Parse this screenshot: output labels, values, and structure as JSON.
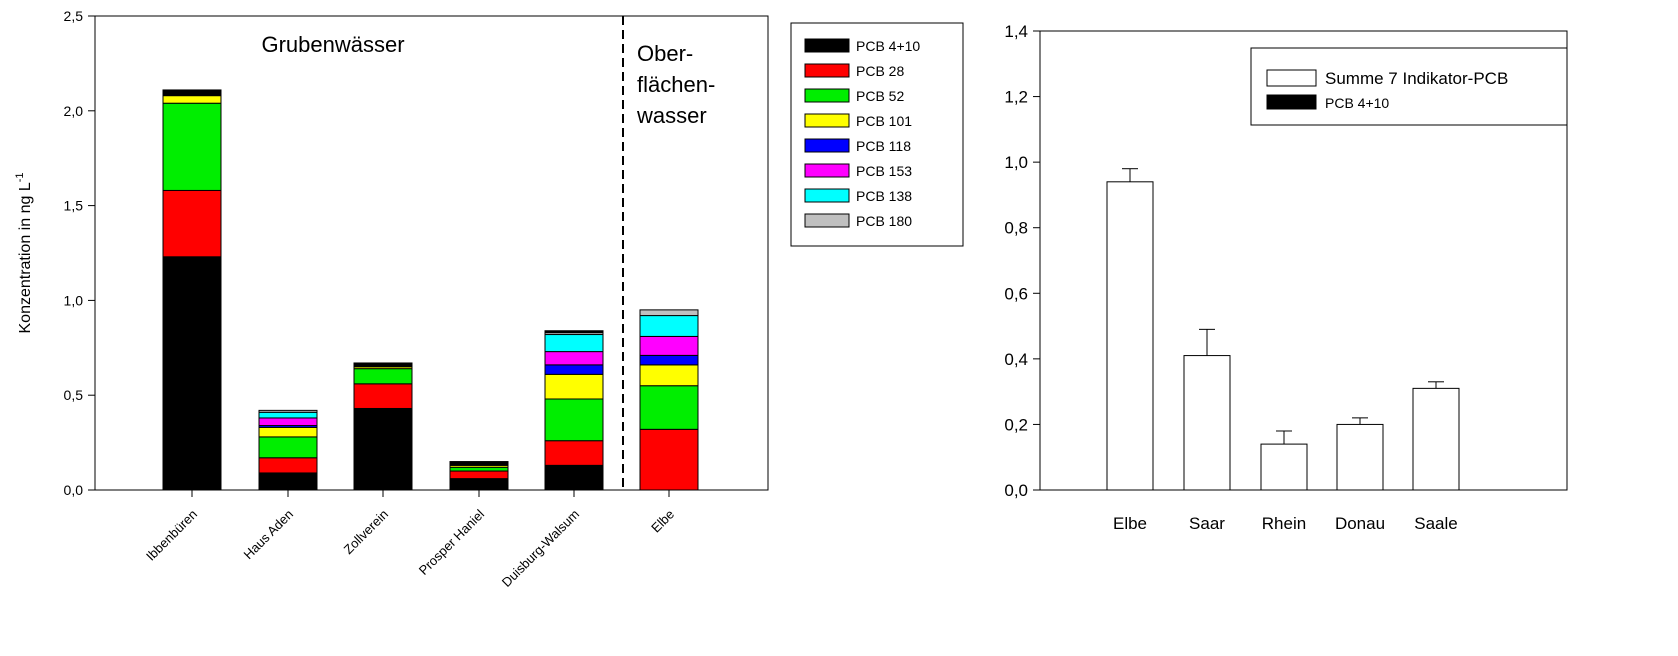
{
  "chart_data": [
    {
      "type": "bar",
      "stacked": true,
      "ylabel": "Konzentration in ng L",
      "ylabel_superscript": "-1",
      "ylim": [
        0,
        2.5
      ],
      "yticks": [
        "0,0",
        "0,5",
        "1,0",
        "1,5",
        "2,0",
        "2,5"
      ],
      "categories": [
        "Ibbenbüren",
        "Haus Aden",
        "Zollverein",
        "Prosper Haniel",
        "Duisburg-Walsum",
        "Elbe"
      ],
      "group_labels": {
        "left": "Grubenwässer",
        "right": [
          "Ober-",
          "flächen-",
          "wasser"
        ]
      },
      "divider_after_category": 4,
      "legend_position": "top-right, outside plot",
      "series": [
        {
          "name": "PCB 4+10",
          "color": "#000000",
          "values": [
            1.23,
            0.09,
            0.43,
            0.06,
            0.13,
            0.0
          ]
        },
        {
          "name": "PCB 28",
          "color": "#ff0000",
          "values": [
            0.35,
            0.08,
            0.13,
            0.04,
            0.13,
            0.32
          ]
        },
        {
          "name": "PCB 52",
          "color": "#00ee00",
          "values": [
            0.46,
            0.11,
            0.08,
            0.02,
            0.22,
            0.23
          ]
        },
        {
          "name": "PCB 101",
          "color": "#ffff00",
          "values": [
            0.04,
            0.05,
            0.01,
            0.01,
            0.13,
            0.11
          ]
        },
        {
          "name": "PCB 118",
          "color": "#0000ff",
          "values": [
            0.0,
            0.01,
            0.0,
            0.0,
            0.05,
            0.05
          ]
        },
        {
          "name": "PCB 153",
          "color": "#ff00ff",
          "values": [
            0.0,
            0.04,
            0.0,
            0.0,
            0.07,
            0.1
          ]
        },
        {
          "name": "PCB 138",
          "color": "#00ffff",
          "values": [
            0.0,
            0.03,
            0.0,
            0.0,
            0.09,
            0.11
          ]
        },
        {
          "name": "PCB 180",
          "color": "#c0c0c0",
          "values": [
            0.0,
            0.01,
            0.0,
            0.0,
            0.01,
            0.03
          ]
        }
      ],
      "totals_top_segment_black": [
        0.03,
        0.0,
        0.02,
        0.02,
        0.01,
        0.0
      ]
    },
    {
      "type": "bar",
      "ylim": [
        0,
        1.4
      ],
      "yticks": [
        "0,0",
        "0,2",
        "0,4",
        "0,6",
        "0,8",
        "1,0",
        "1,2",
        "1,4"
      ],
      "categories": [
        "Elbe",
        "Saar",
        "Rhein",
        "Donau",
        "Saale"
      ],
      "legend_position": "top-right, inside plot",
      "series": [
        {
          "name": "Summe 7 Indikator-PCB",
          "color": "#ffffff",
          "values": [
            0.94,
            0.41,
            0.14,
            0.2,
            0.31
          ],
          "error_plus": [
            0.04,
            0.08,
            0.04,
            0.02,
            0.02
          ]
        },
        {
          "name": "PCB 4+10",
          "color": "#000000",
          "values": [
            0,
            0,
            0,
            0,
            0
          ]
        }
      ]
    }
  ]
}
